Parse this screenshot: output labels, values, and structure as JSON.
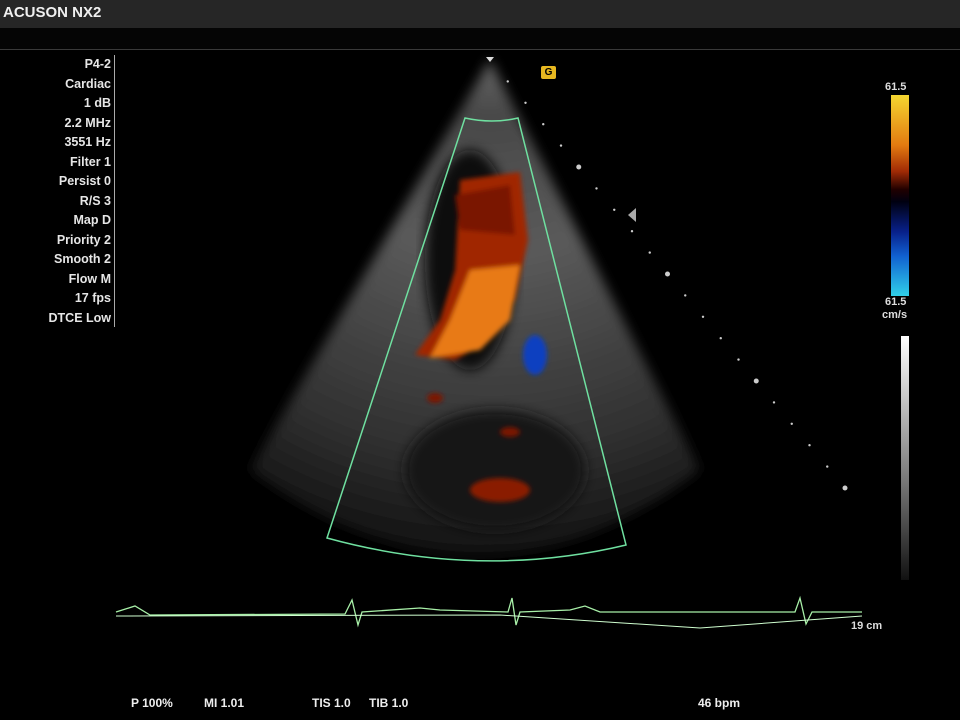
{
  "window": {
    "title": "ACUSON NX2"
  },
  "params": [
    "P4-2",
    "Cardiac",
    "1 dB",
    "2.2 MHz",
    "3551 Hz",
    "Filter 1",
    "Persist 0",
    "R/S 3",
    "Map D",
    "Priority 2",
    "Smooth 2",
    "Flow M",
    "17 fps",
    "DTCE Low"
  ],
  "color_scale": {
    "top": "61.5",
    "bottom": "61.5",
    "unit": "cm/s",
    "colors": [
      "#f5d630",
      "#e37a10",
      "#a02a05",
      "#08208a",
      "#30d0e8"
    ]
  },
  "depth": "19 cm",
  "orientation_marker": {
    "icon": "probe-orientation-icon",
    "color": "#e8b820"
  },
  "bottom": {
    "power": "P 100%",
    "mi": "MI 1.01",
    "tis": "TIS 1.0",
    "tib": "TIB 1.0",
    "heart_rate": "46 bpm"
  },
  "colors": {
    "roi_outline": "#6fe0a0",
    "ecg": "#a8f0a8"
  }
}
